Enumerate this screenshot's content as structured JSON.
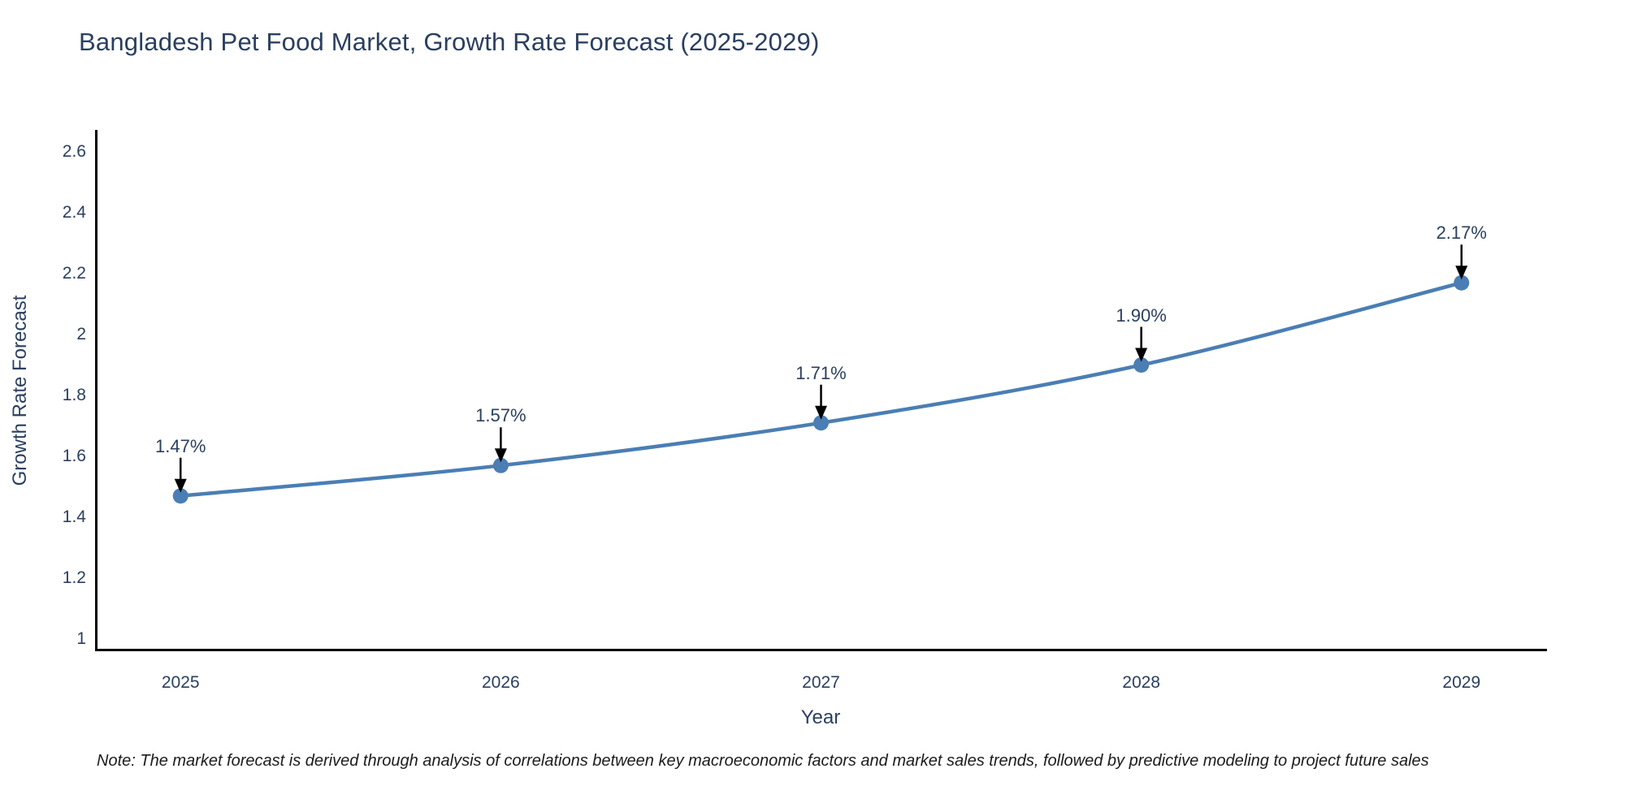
{
  "title": "Bangladesh Pet Food Market, Growth Rate Forecast (2025-2029)",
  "note": "Note: The market forecast is derived through analysis of correlations between key macroeconomic factors and market sales trends, followed by predictive modeling to project future sales",
  "colors": {
    "line": "#4a7eb4",
    "marker": "#4a7eb4",
    "axis_line": "#000000",
    "text": "#2a3f5f",
    "annotation_arrow": "#000000",
    "background": "#ffffff"
  },
  "chart_data": {
    "type": "line",
    "title": "Bangladesh Pet Food Market, Growth Rate Forecast (2025-2029)",
    "xlabel": "Year",
    "ylabel": "Growth Rate Forecast",
    "x": [
      2025,
      2026,
      2027,
      2028,
      2029
    ],
    "y": [
      1.47,
      1.57,
      1.71,
      1.9,
      2.17
    ],
    "point_labels": [
      "1.47%",
      "1.57%",
      "1.71%",
      "1.90%",
      "2.17%"
    ],
    "x_ticks": [
      2025,
      2026,
      2027,
      2028,
      2029
    ],
    "y_ticks": [
      1,
      1.2,
      1.4,
      1.6,
      1.8,
      2,
      2.2,
      2.4,
      2.6
    ],
    "xlim": [
      2024.733,
      2029.267
    ],
    "ylim": [
      0.96,
      2.672
    ],
    "grid": false,
    "legend": false,
    "line_shape": "spline",
    "markers": true,
    "annotations": "each point labeled with value and downward black arrow"
  }
}
